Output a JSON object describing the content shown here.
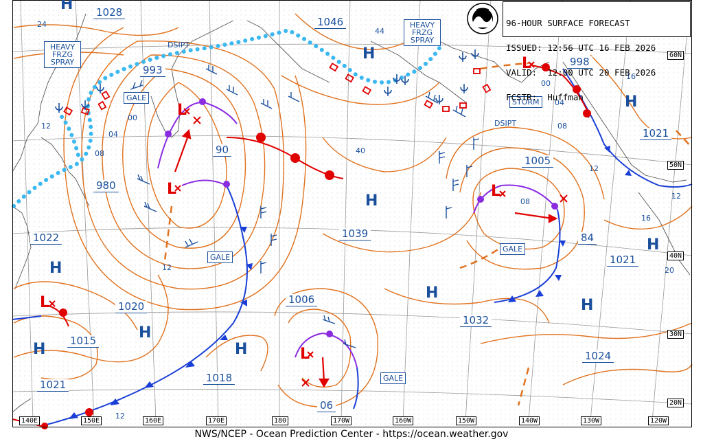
{
  "header": {
    "line1": "96-HOUR SURFACE FORECAST",
    "line2": "ISSUED: 12:56 UTC 16 FEB 2026",
    "line3": "VALID:  12:00 UTC 20 FEB 2026",
    "line4": "FCSTR:  Huffman"
  },
  "footer": "NWS/NCEP - Ocean Prediction Center - https://ocean.weather.gov",
  "lon_labels": [
    "140E",
    "150E",
    "160E",
    "170E",
    "180",
    "170W",
    "160W",
    "150W",
    "140W",
    "130W",
    "120W"
  ],
  "lat_labels": [
    "60N",
    "50N",
    "40N",
    "30N",
    "20N"
  ],
  "pressure_labels": [
    "1028",
    "1046",
    "993",
    "998",
    "1021",
    "90",
    "980",
    "1005",
    "1022",
    "1039",
    "84",
    "1021",
    "1006",
    "1020",
    "1032",
    "1015",
    "1024",
    "1018",
    "1021",
    "06"
  ],
  "isobar_short_labels": [
    "24",
    "44",
    "16",
    "12",
    "00",
    "04",
    "04",
    "08",
    "08",
    "40",
    "08",
    "12",
    "12",
    "16",
    "20",
    "12",
    "00"
  ],
  "warnings": [
    "GALE",
    "GALE",
    "GALE",
    "GALE",
    "STORM"
  ],
  "freezing_spray": [
    "HEAVY FRZG SPRAY",
    "HEAVY FRZG SPRAY"
  ],
  "dissipating": [
    "DSIPT",
    "DSIPT"
  ],
  "highs": [
    "H",
    "H",
    "H",
    "H",
    "H",
    "H",
    "H",
    "H",
    "H",
    "H",
    "H"
  ],
  "lows": [
    "L",
    "L",
    "L",
    "L",
    "L"
  ],
  "colors": {
    "isobar": "#e0721f",
    "text": "#1a4f9c",
    "warm_front": "#e00000",
    "cold_front": "#1a3fd6",
    "occluded": "#8a2be2",
    "ice": "#3bb8f0",
    "land": "#555555",
    "grid": "#9a9a9a"
  }
}
